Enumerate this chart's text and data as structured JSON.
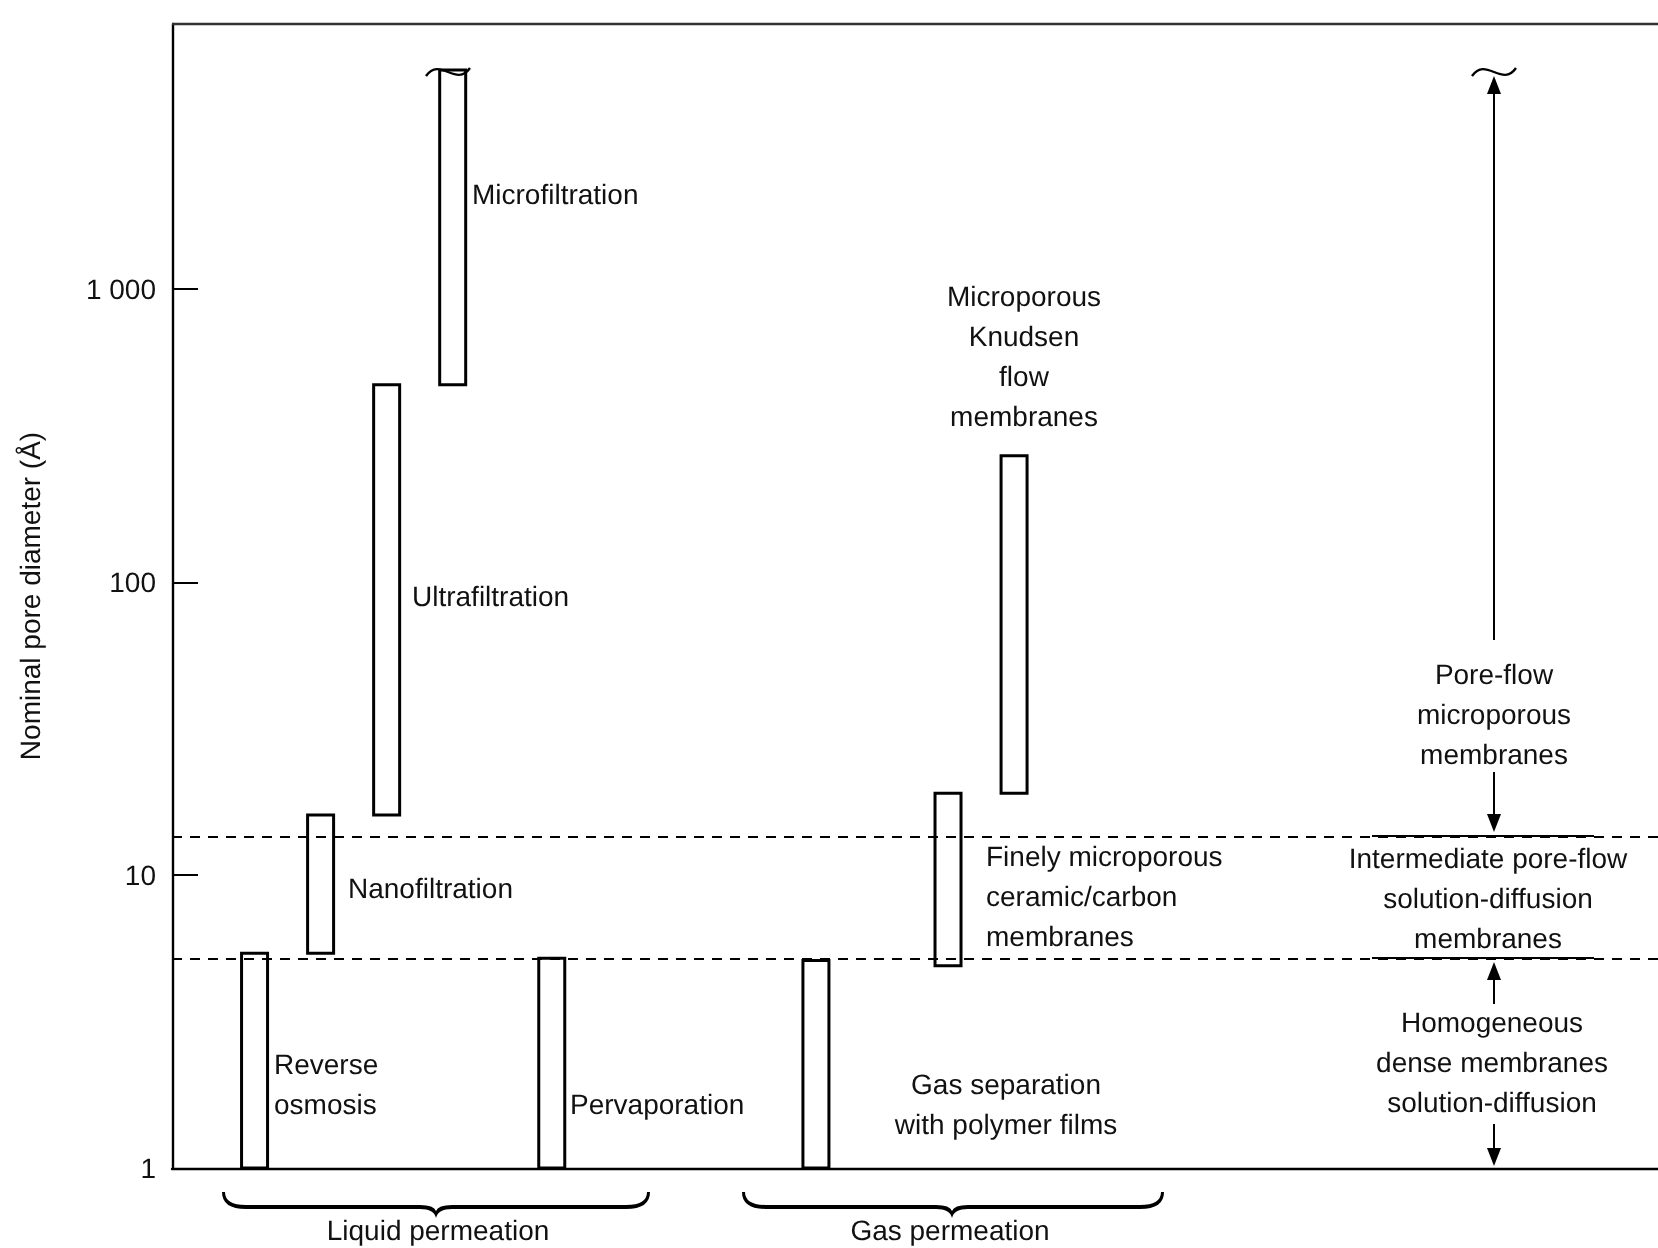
{
  "chart_data": {
    "type": "bar",
    "ylabel": "Nominal pore diameter (Å)",
    "log": true,
    "color": "#ffffff",
    "categories": [
      null,
      null,
      null,
      null,
      null,
      null,
      null,
      null,
      null,
      null,
      null,
      null,
      null,
      null,
      null,
      null,
      null,
      null,
      null,
      null,
      null,
      null,
      null,
      null,
      null,
      null,
      null,
      null,
      null,
      null,
      null,
      null,
      null,
      null,
      null,
      null,
      null,
      null,
      null,
      null,
      null,
      null,
      null,
      null,
      null
    ],
    "values": [
      null,
      null,
      4.4,
      null,
      10.6,
      null,
      454,
      null,
      5100,
      null,
      null,
      4.2,
      null,
      null,
      null,
      null,
      null,
      null,
      null,
      4.1,
      null,
      null,
      null,
      14.1,
      null,
      250,
      null,
      null,
      null,
      null,
      null,
      null,
      null,
      null,
      null,
      null,
      null,
      null,
      null,
      null,
      null,
      null,
      null,
      null,
      null
    ],
    "base": [
      null,
      null,
      1,
      null,
      5.4,
      null,
      16,
      null,
      470,
      null,
      null,
      1,
      null,
      null,
      null,
      null,
      null,
      null,
      null,
      1,
      null,
      null,
      null,
      4.9,
      null,
      19,
      null,
      null,
      null,
      null,
      null,
      null,
      null,
      null,
      null,
      null,
      null,
      null,
      null,
      null,
      null,
      null,
      null,
      null,
      null
    ],
    "ylim": [
      1,
      8000
    ],
    "yticks": [
      1,
      10,
      100,
      {
        "value": 1000,
        "label": "1 000"
      }
    ],
    "ref_lines": [
      {
        "axis": "y",
        "value": 13.5,
        "line_style": "dashed",
        "color": "#000000"
      },
      {
        "axis": "y",
        "value": 5.2,
        "line_style": "dashed",
        "color": "#000000"
      }
    ],
    "annotations": [
      "Microfiltration",
      "Ultrafiltration",
      "Nanofiltration",
      "Reverse\nosmosis",
      "Pervaporation",
      "Gas separation\nwith polymer films",
      "Finely microporous\nceramic/carbon\nmembranes",
      "Microporous\nKnudsen\nflow\nmembranes",
      "Pore-flow\nmicroporous\nmembranes",
      "Intermediate pore-flow\nsolution-diffusion\nmembranes",
      "Homogeneous\ndense membranes\nsolution-diffusion",
      "Liquid permeation",
      "Gas permeation"
    ]
  }
}
